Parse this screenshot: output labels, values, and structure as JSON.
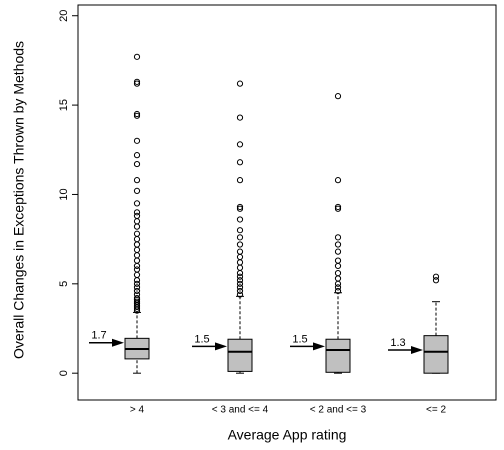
{
  "chart_data": {
    "type": "box",
    "y_label": "Overall Changes in Exceptions Thrown by Methods",
    "x_label": "Average App rating",
    "categories": [
      "> 4",
      "< 3 and <= 4",
      "< 2 and <= 3",
      "<= 2"
    ],
    "ylim": [
      -1.5,
      20.6
    ],
    "yticks": [
      0,
      5,
      10,
      15,
      20
    ],
    "box_color": "#c0c0c0",
    "boxes": [
      {
        "whisker_low": 0,
        "q1": 0.8,
        "median": 1.35,
        "q3": 1.95,
        "whisker_high": 3.4,
        "mean": 1.7,
        "outliers": [
          3.5,
          3.6,
          3.7,
          3.8,
          3.9,
          4.0,
          4.1,
          4.2,
          4.4,
          4.6,
          4.8,
          5.0,
          5.2,
          5.5,
          5.8,
          6.0,
          6.3,
          6.6,
          6.9,
          7.2,
          7.5,
          7.8,
          8.2,
          8.5,
          8.8,
          9.0,
          9.5,
          10.2,
          10.8,
          11.7,
          12.2,
          13,
          14.4,
          14.5,
          16.2,
          16.3,
          17.7
        ]
      },
      {
        "whisker_low": 0,
        "q1": 0.1,
        "median": 1.2,
        "q3": 1.9,
        "whisker_high": 4.3,
        "mean": 1.5,
        "outliers": [
          4.4,
          4.6,
          4.8,
          5.0,
          5.2,
          5.4,
          5.6,
          5.9,
          6.2,
          6.5,
          6.8,
          7.2,
          7.6,
          8.0,
          8.6,
          9.2,
          9.3,
          10.8,
          11.8,
          12.8,
          14.3,
          16.2
        ]
      },
      {
        "whisker_low": 0,
        "q1": 0.05,
        "median": 1.3,
        "q3": 1.9,
        "whisker_high": 4.5,
        "mean": 1.5,
        "outliers": [
          4.6,
          4.8,
          5.0,
          5.3,
          5.6,
          6.0,
          6.3,
          6.8,
          7.2,
          7.6,
          9.2,
          9.3,
          10.8,
          15.5
        ]
      },
      {
        "whisker_low": 0,
        "q1": 0,
        "median": 1.2,
        "q3": 2.1,
        "whisker_high": 4.0,
        "mean": 1.3,
        "outliers": [
          5.2,
          5.4
        ]
      }
    ]
  }
}
